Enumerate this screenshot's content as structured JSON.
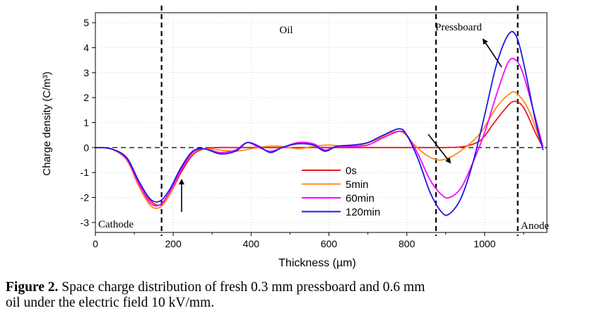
{
  "chart_data": {
    "type": "line",
    "xlabel": "Thickness (µm)",
    "ylabel": "Charge density (C/m³)",
    "xlim": [
      0,
      1160
    ],
    "ylim": [
      -3.4,
      5.4
    ],
    "x_ticks": [
      "0",
      "200",
      "400",
      "600",
      "800",
      "1000"
    ],
    "y_ticks": [
      "-3",
      "-2",
      "-1",
      "0",
      "1",
      "2",
      "3",
      "4",
      "5"
    ],
    "x_tick_values": [
      0,
      200,
      400,
      600,
      800,
      1000
    ],
    "y_tick_values": [
      -3,
      -2,
      -1,
      0,
      1,
      2,
      3,
      4,
      5
    ],
    "grid": "dotted",
    "legend_position": "center-bottom",
    "boundaries": [
      170,
      875,
      1085
    ],
    "regions": {
      "oil": "Oil",
      "pressboard": "Pressboard",
      "cathode": "Cathode",
      "anode": "Anode"
    },
    "series": [
      {
        "name": "0s",
        "color": "#e8191c",
        "x": [
          0,
          40,
          80,
          110,
          140,
          165,
          190,
          220,
          250,
          280,
          320,
          360,
          400,
          440,
          480,
          520,
          560,
          600,
          640,
          680,
          720,
          760,
          800,
          850,
          900,
          950,
          990,
          1020,
          1050,
          1075,
          1100,
          1130,
          1150
        ],
        "values": [
          0,
          -0.05,
          -0.4,
          -1.3,
          -2.1,
          -2.3,
          -1.9,
          -1.0,
          -0.3,
          -0.05,
          0,
          0,
          0,
          0,
          0,
          0,
          0,
          0,
          0,
          0,
          0,
          0,
          0,
          0,
          0,
          0.05,
          0.3,
          0.9,
          1.5,
          1.85,
          1.6,
          0.6,
          0
        ]
      },
      {
        "name": "5min",
        "color": "#ff8c1a",
        "x": [
          0,
          40,
          80,
          110,
          140,
          165,
          190,
          220,
          250,
          280,
          320,
          360,
          400,
          440,
          480,
          520,
          560,
          600,
          640,
          680,
          720,
          760,
          790,
          820,
          850,
          880,
          910,
          950,
          990,
          1030,
          1060,
          1080,
          1110,
          1140,
          1150
        ],
        "values": [
          0,
          -0.05,
          -0.5,
          -1.5,
          -2.3,
          -2.4,
          -1.9,
          -0.9,
          -0.2,
          -0.05,
          -0.1,
          -0.15,
          -0.05,
          0.05,
          0.05,
          -0.05,
          0.05,
          0.1,
          0.05,
          0.1,
          0.3,
          0.6,
          0.6,
          0.1,
          -0.3,
          -0.5,
          -0.4,
          0,
          0.6,
          1.6,
          2.1,
          2.2,
          1.6,
          0.4,
          0
        ]
      },
      {
        "name": "60min",
        "color": "#ff00ff",
        "x": [
          0,
          40,
          80,
          110,
          140,
          165,
          190,
          220,
          250,
          280,
          320,
          360,
          390,
          420,
          450,
          480,
          520,
          560,
          590,
          620,
          660,
          700,
          740,
          780,
          800,
          830,
          860,
          890,
          910,
          940,
          970,
          1000,
          1030,
          1060,
          1080,
          1100,
          1130,
          1150
        ],
        "values": [
          0,
          -0.05,
          -0.45,
          -1.4,
          -2.2,
          -2.3,
          -1.8,
          -0.9,
          -0.2,
          -0.05,
          -0.2,
          -0.1,
          0.2,
          0,
          -0.15,
          0,
          0.2,
          0.15,
          -0.1,
          0.05,
          0.05,
          0.1,
          0.4,
          0.65,
          0.5,
          -0.3,
          -1.3,
          -1.9,
          -2.0,
          -1.6,
          -0.6,
          0.6,
          2.1,
          3.4,
          3.5,
          2.9,
          1.2,
          0
        ]
      },
      {
        "name": "120min",
        "color": "#1a1ae6",
        "x": [
          0,
          40,
          80,
          110,
          140,
          165,
          190,
          220,
          250,
          280,
          320,
          360,
          390,
          420,
          450,
          480,
          520,
          560,
          590,
          620,
          660,
          700,
          740,
          780,
          800,
          830,
          860,
          890,
          910,
          940,
          970,
          1000,
          1030,
          1060,
          1080,
          1100,
          1130,
          1150
        ],
        "values": [
          0,
          -0.05,
          -0.4,
          -1.3,
          -2.05,
          -2.15,
          -1.7,
          -0.8,
          -0.15,
          -0.05,
          -0.25,
          -0.15,
          0.2,
          0.05,
          -0.2,
          0,
          0.15,
          0.1,
          -0.15,
          0.05,
          0.1,
          0.2,
          0.5,
          0.75,
          0.5,
          -0.5,
          -1.8,
          -2.6,
          -2.65,
          -2.0,
          -0.6,
          1.3,
          3.3,
          4.5,
          4.5,
          3.4,
          1.1,
          -0.1
        ]
      }
    ]
  },
  "caption": {
    "label": "Figure 2.",
    "line1": " Space charge distribution of fresh 0.3 mm pressboard and 0.6 mm",
    "line2": "oil under the electric field 10 kV/mm."
  }
}
